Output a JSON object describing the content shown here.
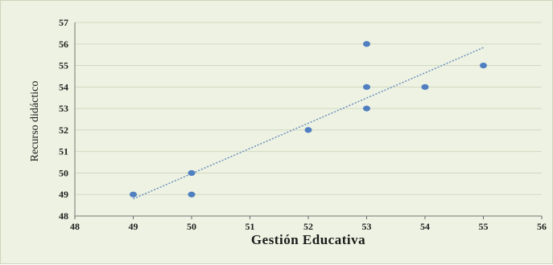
{
  "chart_data": {
    "type": "scatter",
    "title": "",
    "xlabel": "Gestión Educativa",
    "ylabel": "Recurso didáctico",
    "xlim": [
      48,
      56
    ],
    "ylim": [
      48,
      57
    ],
    "xticks": [
      48,
      49,
      50,
      51,
      52,
      53,
      54,
      55,
      56
    ],
    "yticks": [
      48,
      49,
      50,
      51,
      52,
      53,
      54,
      55,
      56,
      57
    ],
    "grid": "horizontal",
    "points": [
      {
        "x": 49,
        "y": 49
      },
      {
        "x": 50,
        "y": 50
      },
      {
        "x": 50,
        "y": 49
      },
      {
        "x": 52,
        "y": 52
      },
      {
        "x": 53,
        "y": 56
      },
      {
        "x": 53,
        "y": 54
      },
      {
        "x": 53,
        "y": 53
      },
      {
        "x": 54,
        "y": 54
      },
      {
        "x": 55,
        "y": 55
      }
    ],
    "trendline": {
      "type": "linear",
      "style": "dotted"
    },
    "colors": {
      "background": "#eef2e2",
      "plot_area": "#eef2e2",
      "grid": "#d2d9c2",
      "point": "#4f7fc0",
      "trendline": "#6b8fbf"
    }
  }
}
